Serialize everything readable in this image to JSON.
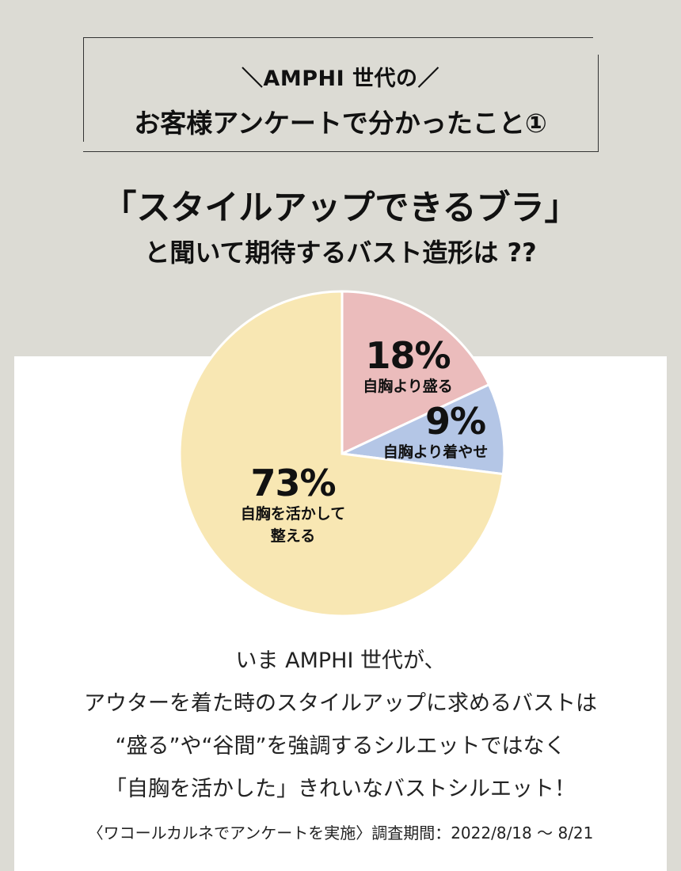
{
  "header": {
    "box_line1": "＼AMPHI 世代の／",
    "box_line2": "お客様アンケートで分かったこと①",
    "headline1": "「スタイルアップできるブラ」",
    "headline2": "と聞いて期待するバスト造形は ??"
  },
  "chart_data": {
    "type": "pie",
    "slices": [
      {
        "pct_label": "18%",
        "label": "自胸より盛る",
        "value": 18,
        "color": "#ebbcbc"
      },
      {
        "pct_label": "9%",
        "label": "自胸より着やせ",
        "value": 9,
        "color": "#b4c6e6"
      },
      {
        "pct_label": "73%",
        "label_line1": "自胸を活かして",
        "label_line2": "整える",
        "value": 73,
        "color": "#f8e7b3"
      }
    ]
  },
  "body": {
    "line1": "いま AMPHI 世代が、",
    "line2": "アウターを着た時のスタイルアップに求めるバストは",
    "line3": "“盛る”や“谷間”を強調するシルエットではなく",
    "line4": "「自胸を活かした」きれいなバストシルエット！"
  },
  "footnote": "〈ワコールカルネでアンケートを実施〉調査期間：2022/8/18 〜 8/21"
}
